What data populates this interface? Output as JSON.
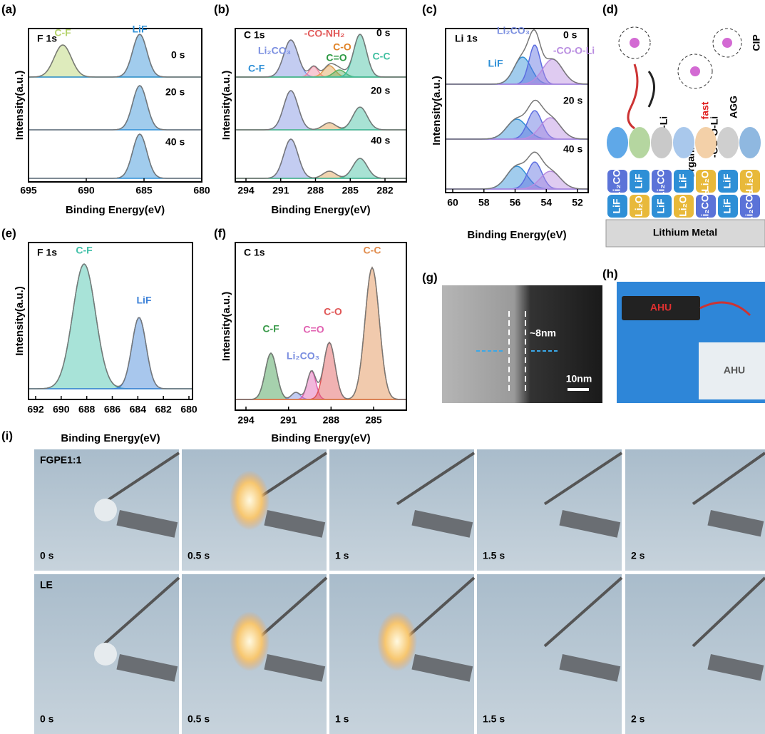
{
  "a": {
    "label": "(a)",
    "title": "F 1s",
    "peaks": [
      "C-F",
      "LiF"
    ],
    "times": [
      "0 s",
      "20 s",
      "40 s"
    ],
    "y_label": "Intensity(a.u.)",
    "x_label": "Binding Energy(eV)",
    "xticks": [
      "695",
      "690",
      "685",
      "680"
    ]
  },
  "b": {
    "label": "(b)",
    "title": "C 1s",
    "peaks": [
      "-CO-NH₂",
      "Li₂CO₃",
      "C-F",
      "C-O",
      "C=O",
      "C-C"
    ],
    "times": [
      "0 s",
      "20 s",
      "40 s"
    ],
    "y_label": "Intensity(a.u.)",
    "x_label": "Binding Energy(eV)",
    "xticks": [
      "294",
      "291",
      "288",
      "285",
      "282"
    ]
  },
  "c": {
    "label": "(c)",
    "title": "Li 1s",
    "peaks": [
      "Li₂CO₃",
      "LiF",
      "-CO-O-Li"
    ],
    "times": [
      "0 s",
      "20 s",
      "40 s"
    ],
    "y_label": "Intensity(a.u.)",
    "x_label": "Binding Energy(eV)",
    "xticks": [
      "60",
      "58",
      "56",
      "54",
      "52"
    ]
  },
  "d": {
    "label": "(d)",
    "cip": "CIP",
    "agg": "AGG",
    "fast": "fast",
    "organic": "Organic",
    "co_o_li": "-CO-O-Li",
    "lif": "LiF",
    "li2o": "Li₂O",
    "li2co3": "Li₂CO₃",
    "metal": "Lithium Metal"
  },
  "e": {
    "label": "(e)",
    "title": "F 1s",
    "peaks": [
      "C-F",
      "LiF"
    ],
    "y_label": "Intensity(a.u.)",
    "x_label": "Binding Energy(eV)",
    "xticks": [
      "692",
      "690",
      "688",
      "686",
      "684",
      "682",
      "680"
    ]
  },
  "f": {
    "label": "(f)",
    "title": "C 1s",
    "peaks": [
      "C-F",
      "Li₂CO₃",
      "C=O",
      "C-O",
      "C-C"
    ],
    "y_label": "Intensity(a.u.)",
    "x_label": "Binding Energy(eV)",
    "xticks": [
      "294",
      "291",
      "288",
      "285"
    ]
  },
  "g": {
    "label": "(g)",
    "thickness": "~8nm",
    "scale": "10nm"
  },
  "h": {
    "label": "(h)",
    "sign": "AHU",
    "pouch": "AHU"
  },
  "i": {
    "label": "(i)",
    "rows": [
      "FGPE1:1",
      "LE"
    ],
    "times": [
      "0 s",
      "0.5 s",
      "1 s",
      "1.5 s",
      "2 s"
    ]
  }
}
